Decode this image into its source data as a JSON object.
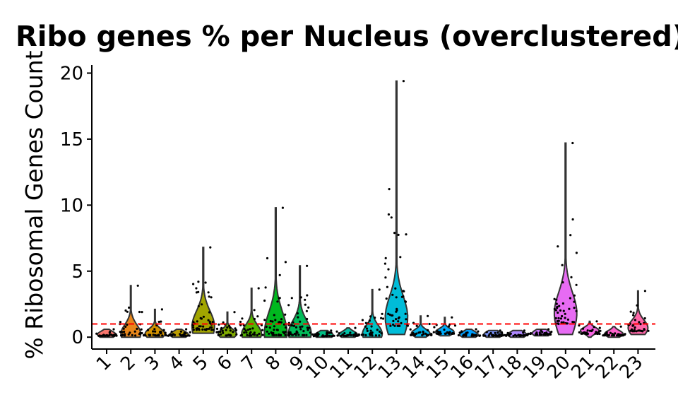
{
  "chart_data": {
    "type": "violin",
    "title": "Ribo genes % per Nucleus (overclustered)",
    "xlabel": "",
    "ylabel": "% Ribosomal Genes Count",
    "ylim": [
      -0.9,
      20.4
    ],
    "yticks": [
      0,
      5,
      10,
      15,
      20
    ],
    "categories": [
      "1",
      "2",
      "3",
      "4",
      "5",
      "6",
      "7",
      "8",
      "9",
      "10",
      "11",
      "12",
      "13",
      "14",
      "15",
      "16",
      "17",
      "18",
      "19",
      "20",
      "21",
      "22",
      "23"
    ],
    "threshold": {
      "y": 1,
      "color": "#ff0000",
      "style": "dashed"
    },
    "series": [
      {
        "cluster": "1",
        "color": "#F8766D",
        "min": 0.0,
        "max": 0.6,
        "median": 0.2
      },
      {
        "cluster": "2",
        "color": "#E7861B",
        "min": 0.0,
        "max": 3.9,
        "median": 0.25
      },
      {
        "cluster": "3",
        "color": "#D39200",
        "min": 0.0,
        "max": 2.1,
        "median": 0.25
      },
      {
        "cluster": "4",
        "color": "#BB9D00",
        "min": 0.0,
        "max": 0.6,
        "median": 0.2
      },
      {
        "cluster": "5",
        "color": "#A2A500",
        "min": 0.3,
        "max": 6.8,
        "median": 0.8
      },
      {
        "cluster": "6",
        "color": "#82AD00",
        "min": 0.0,
        "max": 1.9,
        "median": 0.25
      },
      {
        "cluster": "7",
        "color": "#53B400",
        "min": 0.0,
        "max": 3.7,
        "median": 0.25
      },
      {
        "cluster": "8",
        "color": "#00B81F",
        "min": 0.0,
        "max": 9.8,
        "median": 0.3
      },
      {
        "cluster": "9",
        "color": "#00BC59",
        "min": 0.0,
        "max": 5.4,
        "median": 0.3
      },
      {
        "cluster": "10",
        "color": "#00BE84",
        "min": 0.0,
        "max": 0.5,
        "median": 0.15
      },
      {
        "cluster": "11",
        "color": "#00C0A5",
        "min": 0.0,
        "max": 0.7,
        "median": 0.2
      },
      {
        "cluster": "12",
        "color": "#00C0C2",
        "min": 0.0,
        "max": 3.6,
        "median": 0.25
      },
      {
        "cluster": "13",
        "color": "#00BCD8",
        "min": 0.2,
        "max": 19.4,
        "median": 1.5
      },
      {
        "cluster": "14",
        "color": "#00B5EB",
        "min": 0.0,
        "max": 1.6,
        "median": 0.3
      },
      {
        "cluster": "15",
        "color": "#00ABFA",
        "min": 0.1,
        "max": 1.5,
        "median": 0.4
      },
      {
        "cluster": "16",
        "color": "#00A0FF",
        "min": 0.0,
        "max": 0.6,
        "median": 0.2
      },
      {
        "cluster": "17",
        "color": "#7C96FF",
        "min": 0.0,
        "max": 0.5,
        "median": 0.2
      },
      {
        "cluster": "18",
        "color": "#AE87FF",
        "min": 0.0,
        "max": 0.5,
        "median": 0.2
      },
      {
        "cluster": "19",
        "color": "#CF78FF",
        "min": 0.1,
        "max": 0.6,
        "median": 0.3
      },
      {
        "cluster": "20",
        "color": "#E76BF3",
        "min": 0.2,
        "max": 14.7,
        "median": 1.8
      },
      {
        "cluster": "21",
        "color": "#F663E1",
        "min": 0.0,
        "max": 1.2,
        "median": 0.5
      },
      {
        "cluster": "22",
        "color": "#FE61CB",
        "min": 0.0,
        "max": 0.8,
        "median": 0.25
      },
      {
        "cluster": "23",
        "color": "#FF66A8",
        "min": 0.2,
        "max": 3.5,
        "median": 0.7
      }
    ]
  }
}
